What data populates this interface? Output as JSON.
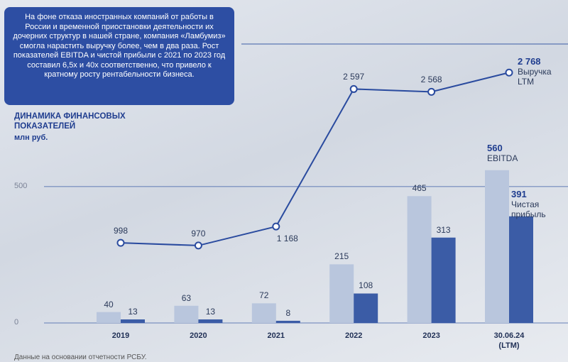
{
  "info_box": "На фоне отказа иностранных компаний от работы в России и временной приостановки деятельности их дочерних структур в нашей стране, компания «Ламбумиз» смогла нарастить выручку более, чем в два раза. Рост показателей EBITDA и чистой прибыли с 2021 по 2023 год составил 6,5х и 40х соответственно, что привело к кратному росту рентабельности бизнеса.",
  "chart_data": {
    "type": "bar",
    "title": "ДИНАМИКА ФИНАНСОВЫХ ПОКАЗАТЕЛЕЙ",
    "subtitle": "млн руб.",
    "categories": [
      "2019",
      "2020",
      "2021",
      "2022",
      "2023",
      "30.06.24\n(LTM)"
    ],
    "series": [
      {
        "name": "EBITDA",
        "color": "#b9c6dd",
        "values": [
          40,
          63,
          72,
          215,
          465,
          560
        ]
      },
      {
        "name": "Чистая прибыль",
        "color": "#3b5ca6",
        "values": [
          13,
          13,
          8,
          108,
          313,
          391
        ]
      },
      {
        "name": "Выручка LTM",
        "type": "line",
        "axis": "y2",
        "color": "#2a4b9f",
        "values": [
          998,
          970,
          1168,
          2597,
          2568,
          2768
        ],
        "value_labels": [
          "998",
          "970",
          "1 168",
          "2 597",
          "2 568",
          "2 768"
        ]
      }
    ],
    "ylim": [
      0,
      700
    ],
    "yticks": [
      0,
      500
    ],
    "y2lim": [
      165,
      2150
    ],
    "grid": true
  },
  "footnote": "Данные на основании отчетности РСБУ."
}
